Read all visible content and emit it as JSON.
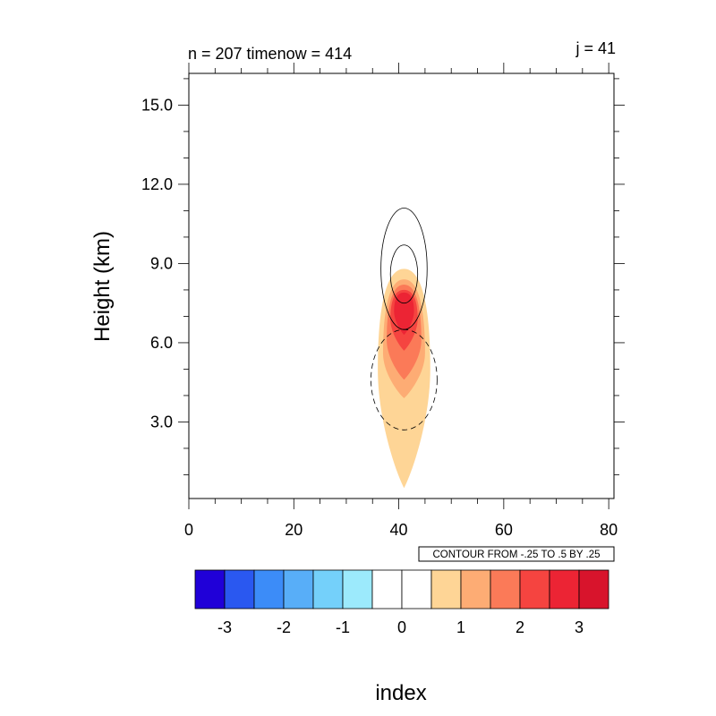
{
  "chart_data": {
    "type": "heatmap",
    "title_left": "n = 207 timenow = 414",
    "title_right": "j = 41",
    "xlabel": "index",
    "ylabel": "Height (km)",
    "xlim": [
      0,
      81
    ],
    "ylim": [
      0.1,
      16.2
    ],
    "x_ticks": [
      0,
      20,
      40,
      60,
      80
    ],
    "x_tick_labels": [
      "0",
      "20",
      "40",
      "60",
      "80"
    ],
    "y_ticks": [
      3,
      6,
      9,
      12,
      15
    ],
    "y_tick_labels": [
      "3.0",
      "6.0",
      "9.0",
      "12.0",
      "15.0"
    ],
    "contour_info": "CONTOUR FROM -.25 TO .5 BY .25",
    "colorbar": {
      "colors": [
        "#2000d8",
        "#2a58f0",
        "#3c8cf8",
        "#58aef8",
        "#74d0fa",
        "#9ceafc",
        "#ffffff",
        "#ffffff",
        "#fed596",
        "#fdac74",
        "#fb7a58",
        "#f54440",
        "#ec2434",
        "#d8142c"
      ],
      "tick_labels": [
        "-3",
        "-2",
        "-1",
        "0",
        "1",
        "2",
        "3"
      ]
    },
    "fill_levels": [
      {
        "level": 1,
        "color": "#fed596",
        "cx": 41,
        "cy": 5.0,
        "rx": 5.0,
        "top": 8.8,
        "bottom": 0.5
      },
      {
        "level": 2,
        "color": "#fdac74",
        "cx": 41,
        "cy": 5.6,
        "rx": 4.0,
        "top": 8.4,
        "bottom": 3.9
      },
      {
        "level": 3,
        "color": "#fb7a58",
        "cx": 41,
        "cy": 6.1,
        "rx": 3.3,
        "top": 8.2,
        "bottom": 4.6
      },
      {
        "level": 4,
        "color": "#f54440",
        "cx": 41,
        "cy": 6.9,
        "rx": 2.6,
        "top": 8.0,
        "bottom": 5.7
      },
      {
        "level": 5,
        "color": "#ec2434",
        "cx": 41,
        "cy": 7.2,
        "rx": 1.9,
        "top": 7.9,
        "bottom": 6.3
      }
    ],
    "contour_lines": [
      {
        "value": 0.25,
        "style": "solid",
        "cx": 41,
        "cy": 8.8,
        "rx": 4.4,
        "ry": 2.3
      },
      {
        "value": 0.5,
        "style": "solid",
        "cx": 41,
        "cy": 8.6,
        "rx": 2.6,
        "ry": 1.1
      },
      {
        "value": -0.25,
        "style": "dashed",
        "cx": 41,
        "cy": 4.6,
        "rx": 6.3,
        "ry": 1.9
      }
    ]
  }
}
